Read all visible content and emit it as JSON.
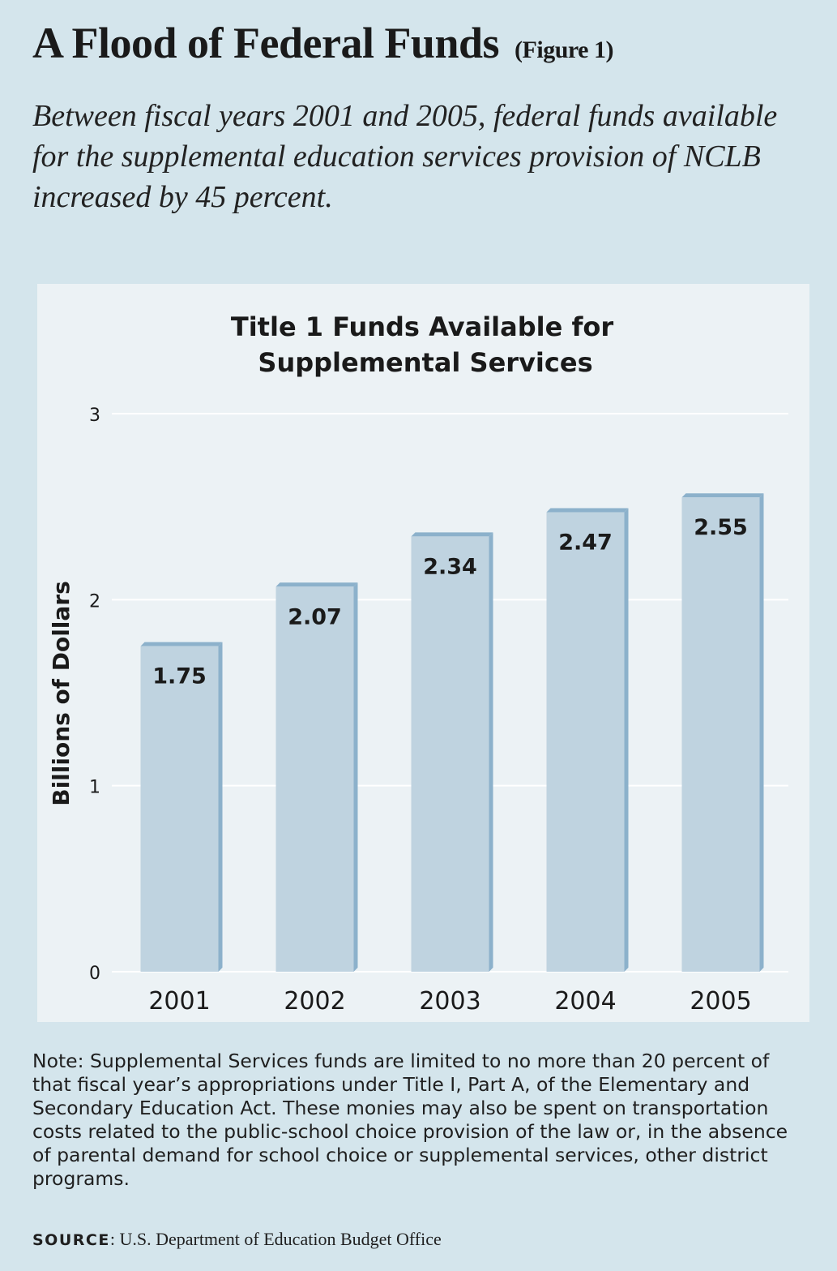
{
  "header": {
    "title": "A Flood of Federal Funds",
    "figure_label": "(Figure 1)",
    "subtitle": "Between fiscal years 2001 and 2005, federal funds available for the supplemental education services provision of NCLB increased by 45 percent."
  },
  "chart_data": {
    "type": "bar",
    "title_lines": [
      "Title 1 Funds Available for",
      "Supplemental Services"
    ],
    "ylabel": "Billions of Dollars",
    "xlabel": "",
    "categories": [
      "2001",
      "2002",
      "2003",
      "2004",
      "2005"
    ],
    "values": [
      1.75,
      2.07,
      2.34,
      2.47,
      2.55
    ],
    "value_labels": [
      "1.75",
      "2.07",
      "2.34",
      "2.47",
      "2.55"
    ],
    "ylim": [
      0,
      3
    ],
    "yticks": [
      "0",
      "1",
      "2",
      "3"
    ],
    "grid": true,
    "colors": {
      "bar_face": "#bfd3e0",
      "bar_side": "#8cb1cb",
      "grid": "#ffffff",
      "panel": "#ecf2f5"
    }
  },
  "note": "Note: Supplemental Services funds are limited to no more than 20 percent of that fiscal year’s appropriations under Title I, Part A, of the Elementary and Secondary Education Act. These monies may also be spent on transportation costs related to the public-school choice provision of the law or, in the absence of parental demand for school choice or supplemental services, other district programs.",
  "source": {
    "label": "SOURCE",
    "text": "U.S. Department of Education Budget Office"
  }
}
